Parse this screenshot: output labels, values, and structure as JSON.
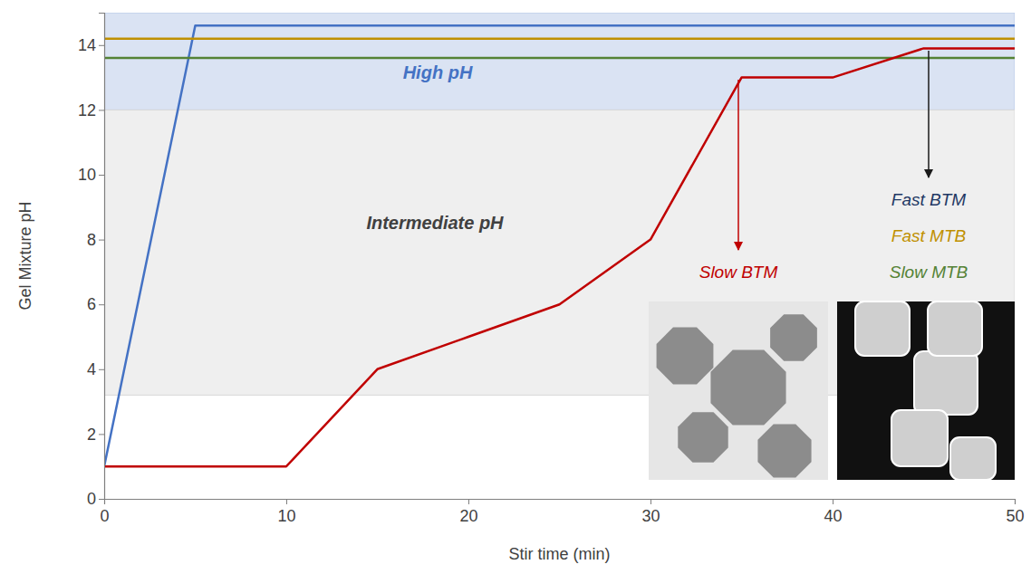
{
  "chart_data": {
    "type": "line",
    "x_label": "Stir time (min)",
    "y_label": "Gel Mixture pH",
    "x": [
      0,
      5,
      10,
      15,
      20,
      25,
      30,
      35,
      40,
      45,
      50
    ],
    "xlim": [
      0,
      50
    ],
    "xticks": [
      0,
      10,
      20,
      30,
      40,
      50
    ],
    "ylim": [
      0,
      15
    ],
    "yticks": [
      0,
      2,
      4,
      6,
      8,
      10,
      12,
      14
    ],
    "grid": false,
    "bands": [
      {
        "label": "High pH",
        "range": [
          12,
          15
        ]
      },
      {
        "label": "Intermediate pH",
        "range": [
          3.2,
          12
        ]
      }
    ],
    "series": [
      {
        "name": "Fast BTM",
        "color": "#4472c4",
        "values": [
          1,
          14.6,
          14.6,
          14.6,
          14.6,
          14.6,
          14.6,
          14.6,
          14.6,
          14.6,
          14.6
        ]
      },
      {
        "name": "Fast MTB",
        "color": "#bf9000",
        "values": [
          14.2,
          14.2,
          14.2,
          14.2,
          14.2,
          14.2,
          14.2,
          14.2,
          14.2,
          14.2,
          14.2
        ]
      },
      {
        "name": "Slow MTB",
        "color": "#548235",
        "values": [
          13.6,
          13.6,
          13.6,
          13.6,
          13.6,
          13.6,
          13.6,
          13.6,
          13.6,
          13.6,
          13.6
        ]
      },
      {
        "name": "Slow BTM",
        "color": "#c00000",
        "values": [
          1,
          1,
          1,
          4,
          5,
          6,
          8,
          13,
          13,
          13.9,
          13.9
        ]
      }
    ]
  }
}
